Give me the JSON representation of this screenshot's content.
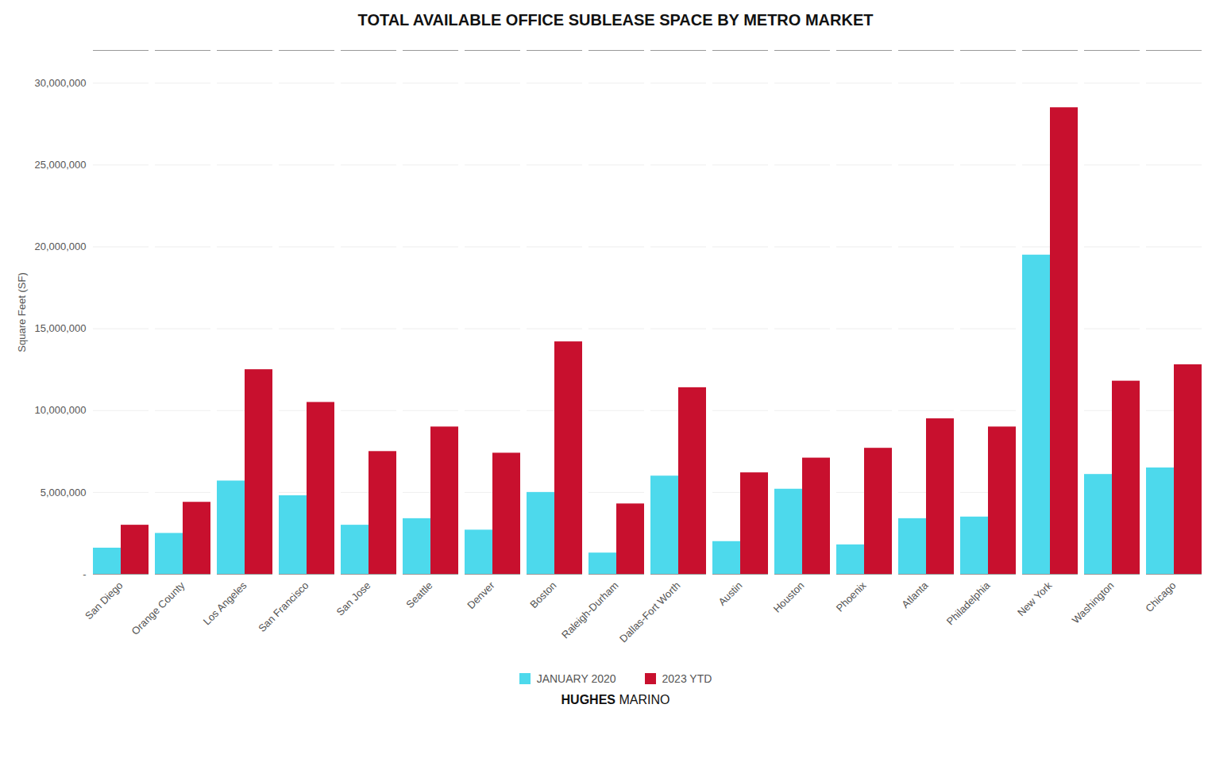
{
  "chart_data": {
    "type": "bar",
    "title": "TOTAL AVAILABLE OFFICE SUBLEASE SPACE BY METRO MARKET",
    "ylabel": "Square Feet (SF)",
    "categories": [
      "San Diego",
      "Orange County",
      "Los Angeles",
      "San Francisco",
      "San Jose",
      "Seattle",
      "Denver",
      "Boston",
      "Raleigh-Durham",
      "Dallas-Fort Worth",
      "Austin",
      "Houston",
      "Phoenix",
      "Atlanta",
      "Philadelphia",
      "New York",
      "Washington",
      "Chicago"
    ],
    "series": [
      {
        "name": "JANUARY 2020",
        "color": "#4DD9EC",
        "values": [
          1600000,
          2500000,
          5700000,
          4800000,
          3000000,
          3400000,
          2700000,
          5000000,
          1300000,
          6000000,
          2000000,
          5200000,
          1800000,
          3400000,
          3500000,
          19500000,
          6100000,
          6500000
        ]
      },
      {
        "name": "2023 YTD",
        "color": "#C8102E",
        "values": [
          3000000,
          4400000,
          12500000,
          10500000,
          7500000,
          9000000,
          7400000,
          14200000,
          4300000,
          11400000,
          6200000,
          7100000,
          7700000,
          9500000,
          9000000,
          28500000,
          11800000,
          12800000
        ]
      }
    ],
    "ylim": [
      0,
      32000000
    ],
    "yticks": [
      {
        "value": 0,
        "label": "-"
      },
      {
        "value": 5000000,
        "label": "5,000,000"
      },
      {
        "value": 10000000,
        "label": "10,000,000"
      },
      {
        "value": 15000000,
        "label": "15,000,000"
      },
      {
        "value": 20000000,
        "label": "20,000,000"
      },
      {
        "value": 25000000,
        "label": "25,000,000"
      },
      {
        "value": 30000000,
        "label": "30,000,000"
      }
    ],
    "grid": true,
    "legend": "bottom",
    "annotations": [
      "HUGHES",
      "MARINO"
    ]
  }
}
